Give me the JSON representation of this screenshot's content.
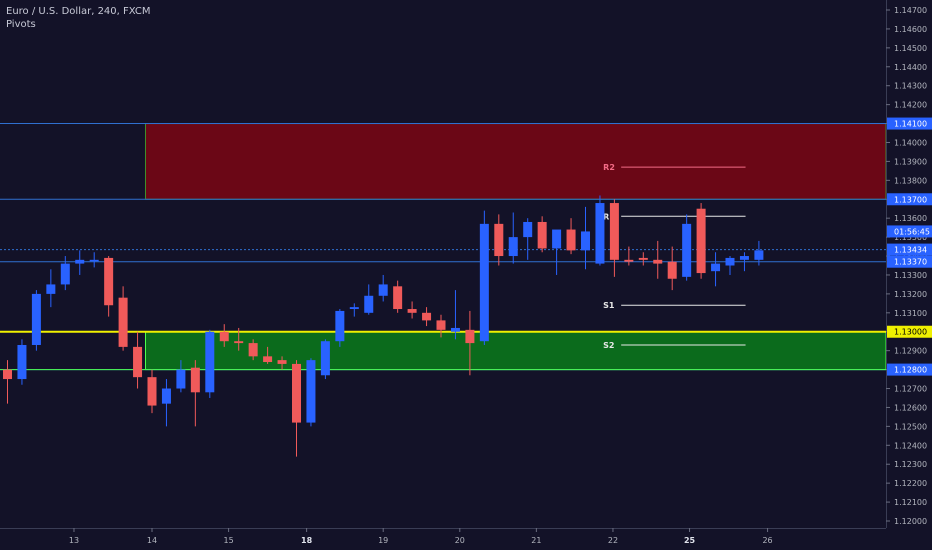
{
  "header": {
    "symbol": "Euro / U.S. Dollar, 240, FXCM",
    "indicator": "Pivots"
  },
  "colors": {
    "background": "#131228",
    "bull": "#2962ff",
    "bear": "#f05a5a",
    "axis_text": "#b2b5be",
    "zone_red": "#6b0716",
    "zone_green": "#0b6b1c",
    "line_yellow": "#f0f000",
    "line_green": "#4cff4c",
    "line_blue": "#2f6fcf",
    "price_tag_blue": "#2962ff",
    "pivot_line": "#e8e8e8",
    "r2_color": "#f46b86"
  },
  "chart_data": {
    "type": "candlestick",
    "y_axis": {
      "range": [
        1.1195,
        1.1478
      ],
      "ticks": [
        "1.14700",
        "1.14600",
        "1.14500",
        "1.14400",
        "1.14300",
        "1.14200",
        "1.14100",
        "1.14000",
        "1.13900",
        "1.13800",
        "1.13700",
        "1.13600",
        "1.13500",
        "1.13400",
        "1.13300",
        "1.13200",
        "1.13100",
        "1.13000",
        "1.12900",
        "1.12800",
        "1.12700",
        "1.12600",
        "1.12500",
        "1.12400",
        "1.12300",
        "1.12200",
        "1.12100",
        "1.12000"
      ]
    },
    "x_axis": {
      "labels": [
        {
          "label": "13",
          "index": 4.6
        },
        {
          "label": "14",
          "index": 10.0
        },
        {
          "label": "15",
          "index": 15.3
        },
        {
          "label": "18",
          "index": 20.7
        },
        {
          "label": "19",
          "index": 26.0
        },
        {
          "label": "20",
          "index": 31.3
        },
        {
          "label": "21",
          "index": 36.6
        },
        {
          "label": "22",
          "index": 41.9
        },
        {
          "label": "25",
          "index": 47.2
        },
        {
          "label": "26",
          "index": 52.6
        }
      ],
      "bold": [
        "18",
        "25"
      ]
    },
    "candles": [
      {
        "o": 1.128,
        "h": 1.1285,
        "l": 1.1262,
        "c": 1.1275
      },
      {
        "o": 1.1275,
        "h": 1.1296,
        "l": 1.1272,
        "c": 1.1293
      },
      {
        "o": 1.1293,
        "h": 1.1322,
        "l": 1.129,
        "c": 1.132
      },
      {
        "o": 1.132,
        "h": 1.1333,
        "l": 1.1313,
        "c": 1.1325
      },
      {
        "o": 1.1325,
        "h": 1.134,
        "l": 1.1322,
        "c": 1.1336
      },
      {
        "o": 1.1336,
        "h": 1.1343,
        "l": 1.133,
        "c": 1.1338
      },
      {
        "o": 1.1338,
        "h": 1.1342,
        "l": 1.1334,
        "c": 1.1338
      },
      {
        "o": 1.1339,
        "h": 1.134,
        "l": 1.1308,
        "c": 1.1314
      },
      {
        "o": 1.1318,
        "h": 1.1324,
        "l": 1.129,
        "c": 1.1292
      },
      {
        "o": 1.1292,
        "h": 1.13,
        "l": 1.127,
        "c": 1.1276
      },
      {
        "o": 1.1276,
        "h": 1.128,
        "l": 1.1257,
        "c": 1.1261
      },
      {
        "o": 1.1262,
        "h": 1.1275,
        "l": 1.125,
        "c": 1.127
      },
      {
        "o": 1.127,
        "h": 1.1285,
        "l": 1.1268,
        "c": 1.128
      },
      {
        "o": 1.1281,
        "h": 1.1285,
        "l": 1.125,
        "c": 1.1268
      },
      {
        "o": 1.1268,
        "h": 1.1301,
        "l": 1.1265,
        "c": 1.13
      },
      {
        "o": 1.13,
        "h": 1.1304,
        "l": 1.1292,
        "c": 1.1295
      },
      {
        "o": 1.1295,
        "h": 1.1302,
        "l": 1.129,
        "c": 1.1294
      },
      {
        "o": 1.1294,
        "h": 1.1296,
        "l": 1.1285,
        "c": 1.1287
      },
      {
        "o": 1.1287,
        "h": 1.1292,
        "l": 1.1283,
        "c": 1.1284
      },
      {
        "o": 1.1285,
        "h": 1.1287,
        "l": 1.128,
        "c": 1.1283
      },
      {
        "o": 1.1283,
        "h": 1.1285,
        "l": 1.1234,
        "c": 1.1252
      },
      {
        "o": 1.1252,
        "h": 1.1286,
        "l": 1.125,
        "c": 1.1285
      },
      {
        "o": 1.1277,
        "h": 1.1296,
        "l": 1.1275,
        "c": 1.1295
      },
      {
        "o": 1.1295,
        "h": 1.1312,
        "l": 1.1292,
        "c": 1.1311
      },
      {
        "o": 1.1312,
        "h": 1.1315,
        "l": 1.1308,
        "c": 1.1313
      },
      {
        "o": 1.131,
        "h": 1.1325,
        "l": 1.1309,
        "c": 1.1319
      },
      {
        "o": 1.1319,
        "h": 1.133,
        "l": 1.1316,
        "c": 1.1325
      },
      {
        "o": 1.1324,
        "h": 1.1327,
        "l": 1.131,
        "c": 1.1312
      },
      {
        "o": 1.1312,
        "h": 1.1316,
        "l": 1.1307,
        "c": 1.131
      },
      {
        "o": 1.131,
        "h": 1.1313,
        "l": 1.1303,
        "c": 1.1306
      },
      {
        "o": 1.1306,
        "h": 1.1309,
        "l": 1.1297,
        "c": 1.1301
      },
      {
        "o": 1.13,
        "h": 1.1322,
        "l": 1.1296,
        "c": 1.1302
      },
      {
        "o": 1.1301,
        "h": 1.1311,
        "l": 1.1277,
        "c": 1.1294
      },
      {
        "o": 1.1295,
        "h": 1.1364,
        "l": 1.1293,
        "c": 1.1357
      },
      {
        "o": 1.1357,
        "h": 1.1362,
        "l": 1.1335,
        "c": 1.134
      },
      {
        "o": 1.134,
        "h": 1.1363,
        "l": 1.1336,
        "c": 1.135
      },
      {
        "o": 1.135,
        "h": 1.136,
        "l": 1.1338,
        "c": 1.1358
      },
      {
        "o": 1.1358,
        "h": 1.1361,
        "l": 1.1342,
        "c": 1.1344
      },
      {
        "o": 1.1344,
        "h": 1.1353,
        "l": 1.133,
        "c": 1.1354
      },
      {
        "o": 1.1354,
        "h": 1.136,
        "l": 1.1341,
        "c": 1.1343
      },
      {
        "o": 1.1343,
        "h": 1.1366,
        "l": 1.1333,
        "c": 1.1353
      },
      {
        "o": 1.1336,
        "h": 1.1372,
        "l": 1.1335,
        "c": 1.1368
      },
      {
        "o": 1.1368,
        "h": 1.137,
        "l": 1.1329,
        "c": 1.1338
      },
      {
        "o": 1.1338,
        "h": 1.1345,
        "l": 1.1335,
        "c": 1.1337
      },
      {
        "o": 1.1339,
        "h": 1.1342,
        "l": 1.1335,
        "c": 1.1338
      },
      {
        "o": 1.1338,
        "h": 1.1348,
        "l": 1.1328,
        "c": 1.1336
      },
      {
        "o": 1.1337,
        "h": 1.1345,
        "l": 1.1322,
        "c": 1.1328
      },
      {
        "o": 1.1329,
        "h": 1.1362,
        "l": 1.1327,
        "c": 1.1357
      },
      {
        "o": 1.1365,
        "h": 1.1368,
        "l": 1.1328,
        "c": 1.1331
      },
      {
        "o": 1.1332,
        "h": 1.1342,
        "l": 1.1324,
        "c": 1.1336
      },
      {
        "o": 1.1335,
        "h": 1.134,
        "l": 1.133,
        "c": 1.1339
      },
      {
        "o": 1.1338,
        "h": 1.1342,
        "l": 1.1332,
        "c": 1.134
      },
      {
        "o": 1.1338,
        "h": 1.1348,
        "l": 1.1335,
        "c": 1.1343
      }
    ],
    "zones": [
      {
        "name": "resistance-zone",
        "from": 1.137,
        "to": 1.141,
        "start_index": 10.0
      },
      {
        "name": "support-zone",
        "from": 1.128,
        "to": 1.13,
        "start_index": 10.0
      }
    ],
    "horizontal_lines": [
      {
        "price": 1.141,
        "color": "#2f6fcf"
      },
      {
        "price": 1.137,
        "color": "#2f6fcf"
      },
      {
        "price": 1.1337,
        "color": "#2f6fcf"
      },
      {
        "price": 1.128,
        "color": "#2f6fcf"
      },
      {
        "price": 1.13,
        "color": "#f0f000"
      }
    ],
    "pivots": [
      {
        "label": "R2",
        "price": 1.1387
      },
      {
        "label": "R1",
        "price": 1.1361
      },
      {
        "label": "S1",
        "price": 1.1314
      },
      {
        "label": "S2",
        "price": 1.1293
      }
    ],
    "pivot_index_range": [
      41.5,
      49.0
    ],
    "price_tags": [
      {
        "text": "1.14100",
        "price": 1.141,
        "style": "blue"
      },
      {
        "text": "1.13700",
        "price": 1.137,
        "style": "blue"
      },
      {
        "text": "1.13434",
        "price": 1.13434,
        "style": "blue"
      },
      {
        "text": "01:56:45",
        "price": 1.1353,
        "style": "blue"
      },
      {
        "text": "1.13370",
        "price": 1.1337,
        "style": "blue"
      },
      {
        "text": "1.13000",
        "price": 1.13,
        "style": "yellow"
      },
      {
        "text": "1.12800",
        "price": 1.128,
        "style": "blue"
      }
    ],
    "current_price": 1.13434
  }
}
